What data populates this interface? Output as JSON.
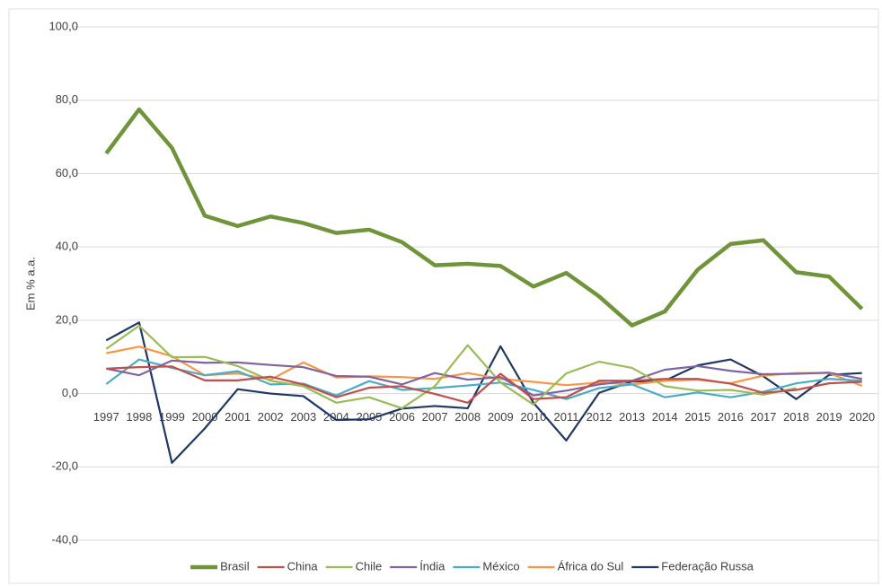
{
  "chart_data": {
    "type": "line",
    "y_label": "Em % a.a.",
    "categories": [
      "1997",
      "1998",
      "1999",
      "2000",
      "2001",
      "2002",
      "2003",
      "2004",
      "2005",
      "2006",
      "2007",
      "2008",
      "2009",
      "2010",
      "2011",
      "2012",
      "2013",
      "2014",
      "2015",
      "2016",
      "2017",
      "2018",
      "2019",
      "2020"
    ],
    "series": [
      {
        "name": "Brasil",
        "color": "#70943a",
        "values": [
          65.5,
          77.5,
          67,
          48.5,
          45.7,
          48.3,
          46.5,
          43.8,
          44.7,
          41.3,
          35,
          35.4,
          34.8,
          29.2,
          32.9,
          26.5,
          18.6,
          22.4,
          33.8,
          40.8,
          41.8,
          33.1,
          31.9,
          23.1
        ]
      },
      {
        "name": "China",
        "color": "#c0504d",
        "values": [
          6.8,
          7.2,
          7.4,
          3.6,
          3.6,
          4.6,
          2.5,
          -1.0,
          1.6,
          2.0,
          -0.1,
          -2.5,
          5.4,
          -1.5,
          -1.0,
          3.5,
          3.5,
          4.0,
          4.0,
          2.7,
          0.2,
          1.0,
          2.8,
          3.2
        ]
      },
      {
        "name": "Chile",
        "color": "#9bbb59",
        "values": [
          12.2,
          18.5,
          9.9,
          10.0,
          7.5,
          3.5,
          2.0,
          -2.5,
          -1.0,
          -4.0,
          2.0,
          13.2,
          3.0,
          -3.0,
          5.5,
          8.7,
          7.0,
          2.0,
          0.8,
          1.0,
          -0.3,
          1.5,
          null,
          null
        ]
      },
      {
        "name": "Índia",
        "color": "#8064a2",
        "values": [
          6.8,
          5.0,
          9.0,
          8.4,
          8.5,
          7.8,
          7.2,
          4.8,
          4.6,
          2.5,
          5.6,
          3.8,
          4.5,
          -0.5,
          0.8,
          2.5,
          3.5,
          6.5,
          7.5,
          6.2,
          5.3,
          5.4,
          5.7,
          4.0
        ]
      },
      {
        "name": "México",
        "color": "#4bacc6",
        "values": [
          2.6,
          9.3,
          7.0,
          5.0,
          6.1,
          2.5,
          2.7,
          -0.5,
          3.4,
          1.0,
          1.5,
          2.2,
          3.0,
          1.0,
          -1.5,
          1.5,
          2.5,
          -1.0,
          0.3,
          -1.0,
          0.5,
          2.8,
          4.0,
          3.5
        ]
      },
      {
        "name": "África do Sul",
        "color": "#f79646",
        "values": [
          11,
          12.8,
          10.2,
          5.0,
          5.5,
          3.8,
          8.5,
          4.4,
          4.7,
          4.5,
          4.0,
          5.6,
          4.0,
          3.2,
          2.3,
          3.0,
          2.5,
          3.5,
          3.8,
          2.8,
          4.9,
          5.6,
          5.6,
          2.1
        ]
      },
      {
        "name": "Federação Russa",
        "color": "#1f3864",
        "values": [
          14.5,
          19.4,
          -18.9,
          -9.5,
          1.2,
          0.0,
          -0.7,
          -7.2,
          -7.0,
          -4.1,
          -3.4,
          -4.0,
          12.9,
          -2.5,
          -12.8,
          0.2,
          3.3,
          3.5,
          7.7,
          9.3,
          4.7,
          -1.5,
          5.1,
          5.6
        ]
      }
    ],
    "ylim": [
      -40,
      100
    ],
    "yticks": [
      {
        "value": -40,
        "label": "-40,0"
      },
      {
        "value": -20,
        "label": "-20,0"
      },
      {
        "value": 0,
        "label": "0,0"
      },
      {
        "value": 20,
        "label": "20,0"
      },
      {
        "value": 40,
        "label": "40,0"
      },
      {
        "value": 60,
        "label": "60,0"
      },
      {
        "value": 80,
        "label": "80,0"
      },
      {
        "value": 100,
        "label": "100,0"
      }
    ],
    "grid": true,
    "legend": "bottom"
  }
}
